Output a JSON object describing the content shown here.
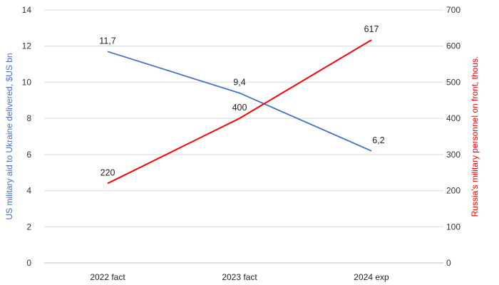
{
  "chart_data": {
    "type": "line",
    "categories": [
      "2022 fact",
      "2023 fact",
      "2024 exp"
    ],
    "series": [
      {
        "axis": "left",
        "color": "#4472C4",
        "values": [
          11.7,
          9.4,
          6.2
        ],
        "data_labels": [
          "11,7",
          "9,4",
          "6,2"
        ]
      },
      {
        "axis": "right",
        "color": "#FF0000",
        "values": [
          220,
          400,
          617
        ],
        "data_labels": [
          "220",
          "400",
          "617"
        ]
      }
    ],
    "y_left": {
      "label": "US military aid to Ukraine delivered, $US bn",
      "label_color": "#4472C4",
      "ylim": [
        0,
        14
      ],
      "ticks": [
        "0",
        "2",
        "4",
        "6",
        "8",
        "10",
        "12",
        "14"
      ]
    },
    "y_right": {
      "label": "Russia's military personnel on front, thous.",
      "label_color": "#FF0000",
      "ylim": [
        0,
        700
      ],
      "ticks": [
        "0",
        "100",
        "200",
        "300",
        "400",
        "500",
        "600",
        "700"
      ]
    },
    "grid": true,
    "legend": "none"
  }
}
